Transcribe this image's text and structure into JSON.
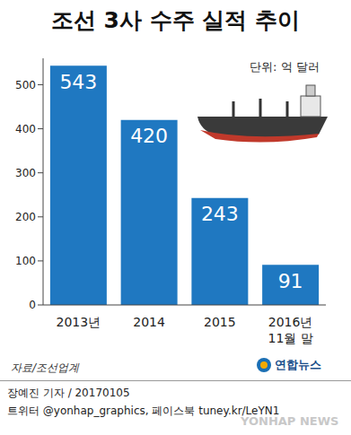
{
  "chart_data": {
    "type": "bar",
    "title": "조선 3사 수주 실적 추이",
    "unit_label": "단위: 억 달러",
    "categories": [
      "2013년",
      "2014",
      "2015",
      "2016년\n11월 말"
    ],
    "values": [
      543,
      420,
      243,
      91
    ],
    "color": "#1f78c1",
    "ylim": [
      0,
      560
    ],
    "yticks": [
      0,
      100,
      200,
      300,
      400,
      500
    ],
    "grid": false,
    "data_labels": true,
    "source": "자료/조선업계",
    "credit": "장예진 기자 / 20170105",
    "social": "트위터 @yonhap_graphics, 페이스북 tuney.kr/LeYN1",
    "logo": "연합뉴스",
    "watermark": "YONHAP NEWS"
  }
}
